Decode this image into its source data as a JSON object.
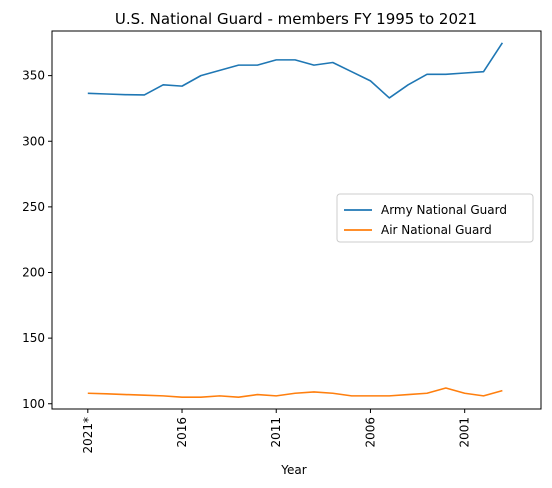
{
  "chart_data": {
    "type": "line",
    "title": "U.S. National Guard - members FY 1995 to 2021",
    "xlabel": "Year",
    "ylabel": "",
    "x": [
      "2021*",
      "2020",
      "2019",
      "2018",
      "2017",
      "2016",
      "2015",
      "2014",
      "2013",
      "2012",
      "2011",
      "2010",
      "2009",
      "2008",
      "2007",
      "2006",
      "2005",
      "2004",
      "2003",
      "2002",
      "2001",
      "2000",
      "1999",
      "1998",
      "1997",
      "1996",
      "1995"
    ],
    "x_tick_labels": [
      "2021*",
      "2016",
      "2011",
      "2006",
      "2001"
    ],
    "x_reversed": true,
    "ylim": [
      96,
      384
    ],
    "y_ticks": [
      100,
      150,
      200,
      250,
      300,
      350
    ],
    "series": [
      {
        "name": "Army National Guard",
        "color": "#1f77b4",
        "values": [
          336.5,
          336,
          335.5,
          335.3,
          343,
          342,
          350,
          354,
          358,
          358,
          362,
          362,
          358,
          360,
          353,
          346,
          333,
          343,
          351,
          351,
          352,
          353,
          375,
          null,
          null,
          null,
          null
        ]
      },
      {
        "name": "Air National Guard",
        "color": "#ff7f0e",
        "values": [
          108,
          107.6,
          107,
          106.5,
          106,
          105,
          105,
          106,
          105,
          107,
          106,
          108,
          109,
          108,
          106,
          106,
          106,
          107,
          108,
          112,
          108,
          106,
          110,
          null,
          null,
          null,
          null
        ]
      }
    ],
    "legend_position": "center-right",
    "grid": false
  }
}
